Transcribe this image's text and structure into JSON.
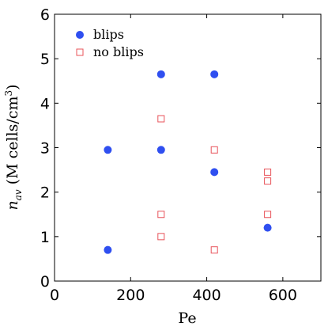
{
  "chart_data": {
    "type": "scatter",
    "xlabel": "Pe",
    "ylabel": "n_av (M cells/cm³)",
    "ylabel_parts": {
      "n": "n",
      "sub": "av",
      "rest": " (M cells/cm",
      "sup": "3",
      "close": ")"
    },
    "xlim": [
      0,
      700
    ],
    "ylim": [
      0,
      6
    ],
    "x_ticks": [
      0,
      200,
      400,
      600
    ],
    "y_ticks": [
      0,
      1,
      2,
      3,
      4,
      5,
      6
    ],
    "grid": false,
    "legend_position": "top-left",
    "series": [
      {
        "name": "blips",
        "marker": "filled-circle",
        "color": "#2f4ff0",
        "points": [
          {
            "x": 140,
            "y": 0.7
          },
          {
            "x": 140,
            "y": 2.95
          },
          {
            "x": 280,
            "y": 2.95
          },
          {
            "x": 280,
            "y": 4.65
          },
          {
            "x": 420,
            "y": 4.65
          },
          {
            "x": 420,
            "y": 2.45
          },
          {
            "x": 560,
            "y": 1.2
          }
        ]
      },
      {
        "name": "no blips",
        "marker": "open-square",
        "color": "#e8535a",
        "points": [
          {
            "x": 280,
            "y": 1.0
          },
          {
            "x": 280,
            "y": 1.5
          },
          {
            "x": 280,
            "y": 3.65
          },
          {
            "x": 420,
            "y": 0.7
          },
          {
            "x": 420,
            "y": 2.95
          },
          {
            "x": 560,
            "y": 1.5
          },
          {
            "x": 560,
            "y": 2.25
          },
          {
            "x": 560,
            "y": 2.45
          }
        ]
      }
    ]
  }
}
